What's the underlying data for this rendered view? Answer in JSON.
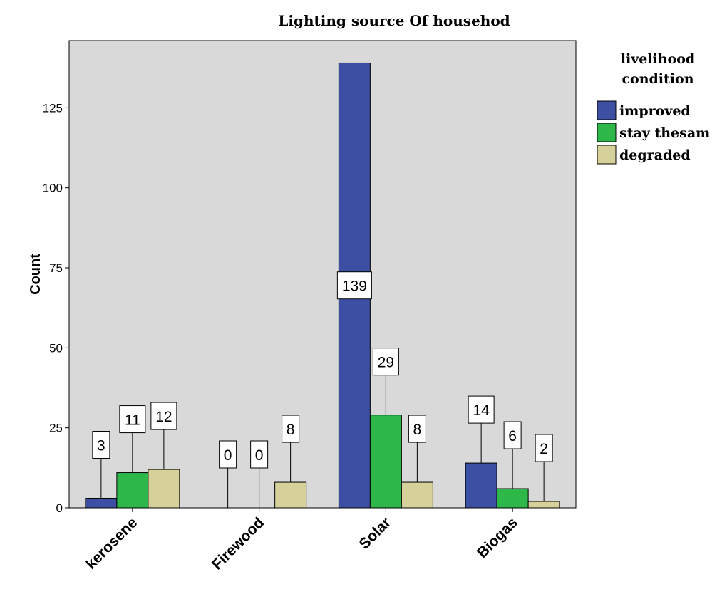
{
  "chart_data": {
    "type": "bar",
    "title": "Lighting source Of househod",
    "xlabel": "",
    "ylabel": "Count",
    "categories": [
      "kerosene",
      "Firewood",
      "Solar",
      "Biogas"
    ],
    "series": [
      {
        "name": "improved",
        "values": [
          3,
          0,
          139,
          14
        ],
        "color": "#3c4fa3"
      },
      {
        "name": "stay thesam",
        "values": [
          11,
          0,
          29,
          6
        ],
        "color": "#2fb84a"
      },
      {
        "name": "degraded",
        "values": [
          12,
          8,
          8,
          2
        ],
        "color": "#d6d09a"
      }
    ],
    "ylim": [
      0,
      146
    ],
    "yticks": [
      0,
      25,
      50,
      75,
      100,
      125
    ],
    "grid": false,
    "legend": {
      "title": [
        "livelihood",
        "condition"
      ],
      "placement": "top-right"
    },
    "plot_background": "#d9d9d9"
  }
}
